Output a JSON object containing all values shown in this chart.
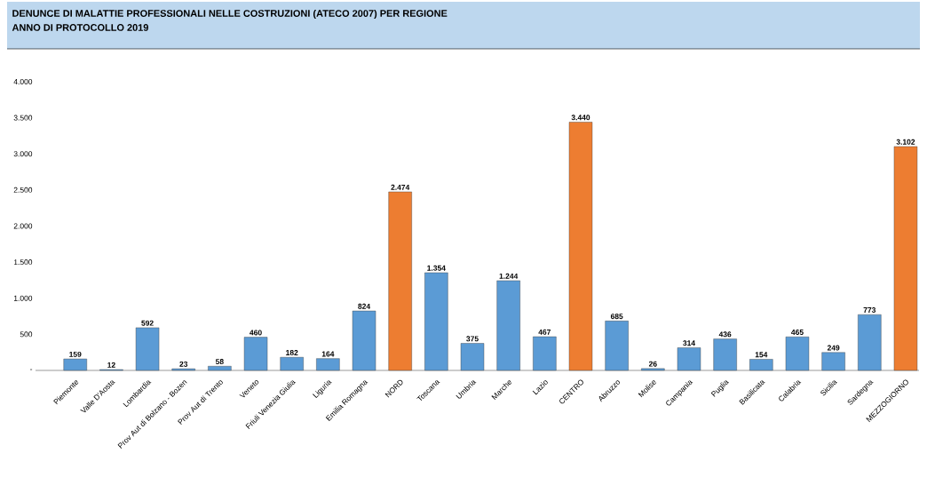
{
  "chart_data": {
    "type": "bar",
    "title": "DENUNCE DI MALATTIE PROFESSIONALI NELLE COSTRUZIONI (ATECO 2007) PER REGIONE",
    "subtitle": "ANNO DI PROTOCOLLO 2019",
    "categories": [
      "Piemonte",
      "Valle D'Aosta",
      "Lombardia",
      "Prov Aut di Bolzano - Bozen",
      "Prov Aut di Trento",
      "Veneto",
      "Friuli Venezia Giulia",
      "Liguria",
      "Emilia Romagna",
      "NORD",
      "Toscana",
      "Umbria",
      "Marche",
      "Lazio",
      "CENTRO",
      "Abruzzo",
      "Molise",
      "Campania",
      "Puglia",
      "Basilicata",
      "Calabria",
      "Sicilia",
      "Sardegna",
      "MEZZOGIORNO"
    ],
    "values": [
      159,
      12,
      592,
      23,
      58,
      460,
      182,
      164,
      824,
      2474,
      1354,
      375,
      1244,
      467,
      3440,
      685,
      26,
      314,
      436,
      154,
      465,
      249,
      773,
      3102
    ],
    "value_labels": [
      "159",
      "12",
      "592",
      "23",
      "58",
      "460",
      "182",
      "164",
      "824",
      "2.474",
      "1.354",
      "375",
      "1.244",
      "467",
      "3.440",
      "685",
      "26",
      "314",
      "436",
      "154",
      "465",
      "249",
      "773",
      "3.102"
    ],
    "colors": [
      "#5b9bd5",
      "#5b9bd5",
      "#5b9bd5",
      "#5b9bd5",
      "#5b9bd5",
      "#5b9bd5",
      "#5b9bd5",
      "#5b9bd5",
      "#5b9bd5",
      "#ed7d31",
      "#5b9bd5",
      "#5b9bd5",
      "#5b9bd5",
      "#5b9bd5",
      "#ed7d31",
      "#5b9bd5",
      "#5b9bd5",
      "#5b9bd5",
      "#5b9bd5",
      "#5b9bd5",
      "#5b9bd5",
      "#5b9bd5",
      "#5b9bd5",
      "#ed7d31"
    ],
    "ylim": [
      0,
      4000
    ],
    "yticks": [
      {
        "value": 0,
        "label": "-"
      },
      500,
      {
        "value": 1000,
        "label": "1.000"
      },
      {
        "value": 1500,
        "label": "1.500"
      },
      {
        "value": 2000,
        "label": "2.000"
      },
      {
        "value": 2500,
        "label": "2.500"
      },
      {
        "value": 3000,
        "label": "3.000"
      },
      {
        "value": 3500,
        "label": "3.500"
      },
      {
        "value": 4000,
        "label": "4.000"
      }
    ],
    "grid": false
  }
}
